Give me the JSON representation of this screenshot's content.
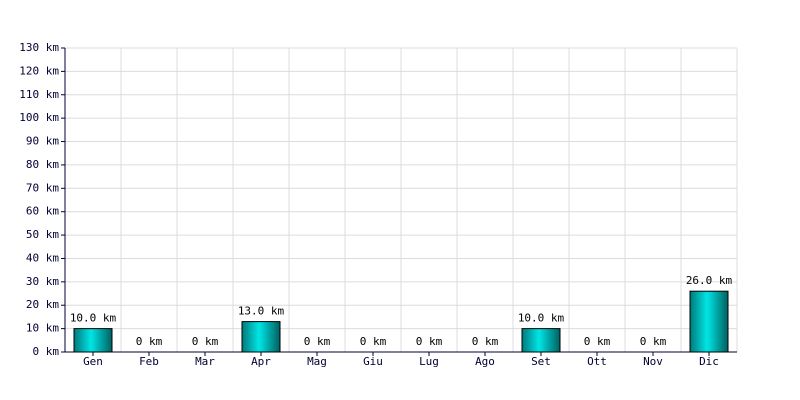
{
  "chart_data": {
    "type": "bar",
    "categories": [
      "Gen",
      "Feb",
      "Mar",
      "Apr",
      "Mag",
      "Giu",
      "Lug",
      "Ago",
      "Set",
      "Ott",
      "Nov",
      "Dic"
    ],
    "values": [
      10,
      0,
      0,
      13,
      0,
      0,
      0,
      0,
      10,
      0,
      0,
      26
    ],
    "value_labels": [
      "10.0 km",
      "0 km",
      "0 km",
      "13.0 km",
      "0 km",
      "0 km",
      "0 km",
      "0 km",
      "10.0 km",
      "0 km",
      "0 km",
      "26.0 km"
    ],
    "color": "#00e5e5",
    "ylim": [
      0,
      130
    ],
    "yticks": [
      {
        "value": 0,
        "label": "0 km"
      },
      {
        "value": 10,
        "label": "10 km"
      },
      {
        "value": 20,
        "label": "20 km"
      },
      {
        "value": 30,
        "label": "30 km"
      },
      {
        "value": 40,
        "label": "40 km"
      },
      {
        "value": 50,
        "label": "50 km"
      },
      {
        "value": 60,
        "label": "60 km"
      },
      {
        "value": 70,
        "label": "70 km"
      },
      {
        "value": 80,
        "label": "80 km"
      },
      {
        "value": 90,
        "label": "90 km"
      },
      {
        "value": 100,
        "label": "100 km"
      },
      {
        "value": 110,
        "label": "110 km"
      },
      {
        "value": 120,
        "label": "120 km"
      },
      {
        "value": 130,
        "label": "130 km"
      }
    ],
    "grid": true
  }
}
